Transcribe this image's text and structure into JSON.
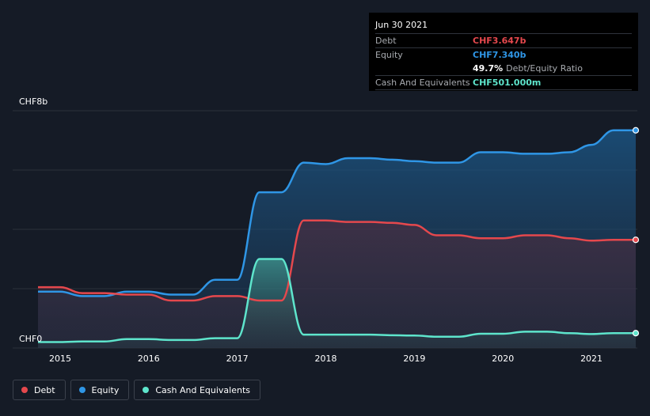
{
  "chart_data": {
    "type": "area",
    "y_label_top": "CHF8b",
    "y_label_bottom": "CHF0",
    "ylim": [
      0,
      8
    ],
    "xlim": [
      2014.75,
      2021.5
    ],
    "x_ticks": [
      "2015",
      "2016",
      "2017",
      "2018",
      "2019",
      "2020",
      "2021"
    ],
    "grid": true,
    "legend_placement": "bottom-left",
    "series": [
      {
        "name": "Debt",
        "color": "#e5484d",
        "points": [
          [
            2014.75,
            2.05
          ],
          [
            2015.0,
            2.05
          ],
          [
            2015.25,
            1.85
          ],
          [
            2015.5,
            1.85
          ],
          [
            2015.75,
            1.8
          ],
          [
            2016.0,
            1.8
          ],
          [
            2016.25,
            1.6
          ],
          [
            2016.5,
            1.6
          ],
          [
            2016.75,
            1.75
          ],
          [
            2017.0,
            1.75
          ],
          [
            2017.25,
            1.6
          ],
          [
            2017.5,
            1.6
          ],
          [
            2017.75,
            4.3
          ],
          [
            2018.0,
            4.3
          ],
          [
            2018.25,
            4.25
          ],
          [
            2018.5,
            4.25
          ],
          [
            2018.75,
            4.22
          ],
          [
            2019.0,
            4.15
          ],
          [
            2019.25,
            3.8
          ],
          [
            2019.5,
            3.8
          ],
          [
            2019.75,
            3.7
          ],
          [
            2020.0,
            3.7
          ],
          [
            2020.25,
            3.8
          ],
          [
            2020.5,
            3.8
          ],
          [
            2020.75,
            3.7
          ],
          [
            2021.0,
            3.62
          ],
          [
            2021.25,
            3.647
          ],
          [
            2021.5,
            3.647
          ]
        ]
      },
      {
        "name": "Equity",
        "color": "#2f96e6",
        "points": [
          [
            2014.75,
            1.9
          ],
          [
            2015.0,
            1.9
          ],
          [
            2015.25,
            1.75
          ],
          [
            2015.5,
            1.75
          ],
          [
            2015.75,
            1.9
          ],
          [
            2016.0,
            1.9
          ],
          [
            2016.25,
            1.8
          ],
          [
            2016.5,
            1.8
          ],
          [
            2016.75,
            2.3
          ],
          [
            2017.0,
            2.3
          ],
          [
            2017.25,
            5.25
          ],
          [
            2017.5,
            5.25
          ],
          [
            2017.75,
            6.25
          ],
          [
            2018.0,
            6.2
          ],
          [
            2018.25,
            6.4
          ],
          [
            2018.5,
            6.4
          ],
          [
            2018.75,
            6.35
          ],
          [
            2019.0,
            6.3
          ],
          [
            2019.25,
            6.25
          ],
          [
            2019.5,
            6.25
          ],
          [
            2019.75,
            6.6
          ],
          [
            2020.0,
            6.6
          ],
          [
            2020.25,
            6.55
          ],
          [
            2020.5,
            6.55
          ],
          [
            2020.75,
            6.6
          ],
          [
            2021.0,
            6.85
          ],
          [
            2021.25,
            7.34
          ],
          [
            2021.5,
            7.34
          ]
        ]
      },
      {
        "name": "Cash And Equivalents",
        "color": "#5ee5cc",
        "points": [
          [
            2014.75,
            0.2
          ],
          [
            2015.0,
            0.2
          ],
          [
            2015.25,
            0.22
          ],
          [
            2015.5,
            0.22
          ],
          [
            2015.75,
            0.3
          ],
          [
            2016.0,
            0.3
          ],
          [
            2016.25,
            0.27
          ],
          [
            2016.5,
            0.27
          ],
          [
            2016.75,
            0.33
          ],
          [
            2017.0,
            0.33
          ],
          [
            2017.25,
            3.0
          ],
          [
            2017.5,
            3.0
          ],
          [
            2017.75,
            0.45
          ],
          [
            2018.0,
            0.45
          ],
          [
            2018.25,
            0.45
          ],
          [
            2018.5,
            0.45
          ],
          [
            2018.75,
            0.43
          ],
          [
            2019.0,
            0.42
          ],
          [
            2019.25,
            0.38
          ],
          [
            2019.5,
            0.38
          ],
          [
            2019.75,
            0.48
          ],
          [
            2020.0,
            0.48
          ],
          [
            2020.25,
            0.55
          ],
          [
            2020.5,
            0.55
          ],
          [
            2020.75,
            0.5
          ],
          [
            2021.0,
            0.47
          ],
          [
            2021.25,
            0.501
          ],
          [
            2021.5,
            0.501
          ]
        ]
      }
    ]
  },
  "tooltip": {
    "date": "Jun 30 2021",
    "debt_label": "Debt",
    "debt_value": "CHF3.647b",
    "debt_color": "#e5484d",
    "equity_label": "Equity",
    "equity_value": "CHF7.340b",
    "equity_color": "#2f96e6",
    "ratio_value": "49.7%",
    "ratio_label": "Debt/Equity Ratio",
    "cash_label": "Cash And Equivalents",
    "cash_value": "CHF501.000m",
    "cash_color": "#5ee5cc"
  },
  "legend": {
    "items": [
      {
        "label": "Debt",
        "color": "#e5484d"
      },
      {
        "label": "Equity",
        "color": "#2f96e6"
      },
      {
        "label": "Cash And Equivalents",
        "color": "#5ee5cc"
      }
    ]
  }
}
